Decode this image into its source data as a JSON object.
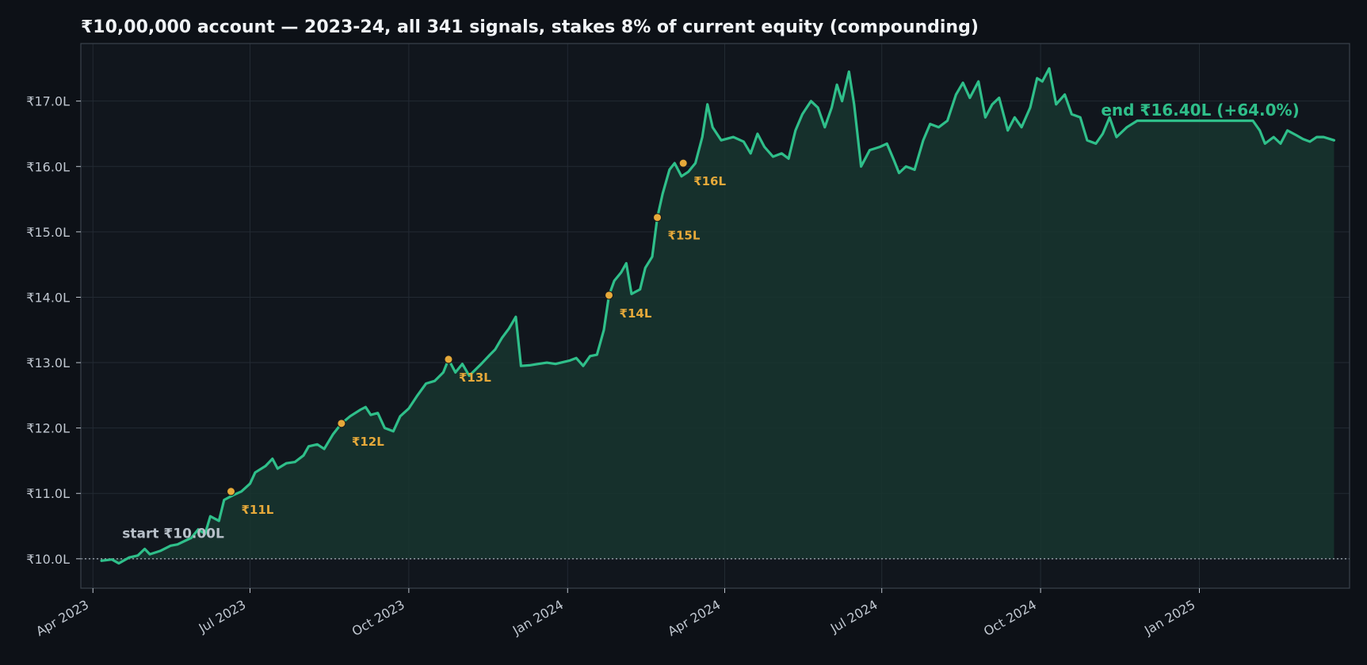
{
  "chart_data": {
    "type": "area",
    "title": "₹10,00,000 account — 2023-24, all 341 signals, stakes 8% of current equity (compounding)",
    "xlabel": "",
    "ylabel": "",
    "xlim": [
      "2023-03-25",
      "2025-03-29"
    ],
    "ylim": [
      9.55,
      17.88
    ],
    "grid": true,
    "y_unit": "lakh rupees",
    "yticks": [
      10,
      11,
      12,
      13,
      14,
      15,
      16,
      17
    ],
    "ytick_labels": [
      "₹10.0L",
      "₹11.0L",
      "₹12.0L",
      "₹13.0L",
      "₹14.0L",
      "₹15.0L",
      "₹16.0L",
      "₹17.0L"
    ],
    "xticks": [
      "2023-04-01",
      "2023-07-01",
      "2023-10-01",
      "2024-01-01",
      "2024-04-01",
      "2024-07-01",
      "2024-10-01",
      "2025-01-01"
    ],
    "xtick_labels": [
      "Apr 2023",
      "Jul 2023",
      "Oct 2023",
      "Jan 2024",
      "Apr 2024",
      "Jul 2024",
      "Oct 2024",
      "Jan 2025"
    ],
    "baseline": 10.0,
    "colors": {
      "line": "#2fbf8a",
      "fill": "#17352f",
      "milestone": "#e6a93a",
      "baseline": "#9aa3ad"
    },
    "series": [
      {
        "points": [
          [
            "2023-04-06",
            9.97
          ],
          [
            "2023-04-12",
            9.99
          ],
          [
            "2023-04-16",
            9.93
          ],
          [
            "2023-04-22",
            10.02
          ],
          [
            "2023-04-27",
            10.05
          ],
          [
            "2023-05-01",
            10.15
          ],
          [
            "2023-05-04",
            10.07
          ],
          [
            "2023-05-10",
            10.12
          ],
          [
            "2023-05-16",
            10.2
          ],
          [
            "2023-05-20",
            10.22
          ],
          [
            "2023-05-24",
            10.27
          ],
          [
            "2023-05-28",
            10.32
          ],
          [
            "2023-06-01",
            10.45
          ],
          [
            "2023-06-05",
            10.38
          ],
          [
            "2023-06-08",
            10.65
          ],
          [
            "2023-06-13",
            10.58
          ],
          [
            "2023-06-16",
            10.9
          ],
          [
            "2023-06-21",
            10.97
          ],
          [
            "2023-06-26",
            11.03
          ],
          [
            "2023-07-01",
            11.15
          ],
          [
            "2023-07-04",
            11.32
          ],
          [
            "2023-07-10",
            11.42
          ],
          [
            "2023-07-14",
            11.53
          ],
          [
            "2023-07-17",
            11.38
          ],
          [
            "2023-07-22",
            11.46
          ],
          [
            "2023-07-27",
            11.48
          ],
          [
            "2023-08-01",
            11.58
          ],
          [
            "2023-08-04",
            11.72
          ],
          [
            "2023-08-09",
            11.75
          ],
          [
            "2023-08-13",
            11.68
          ],
          [
            "2023-08-18",
            11.9
          ],
          [
            "2023-08-23",
            12.07
          ],
          [
            "2023-08-28",
            12.18
          ],
          [
            "2023-09-03",
            12.28
          ],
          [
            "2023-09-06",
            12.32
          ],
          [
            "2023-09-09",
            12.2
          ],
          [
            "2023-09-13",
            12.23
          ],
          [
            "2023-09-17",
            12.0
          ],
          [
            "2023-09-22",
            11.95
          ],
          [
            "2023-09-26",
            12.18
          ],
          [
            "2023-10-01",
            12.3
          ],
          [
            "2023-10-06",
            12.5
          ],
          [
            "2023-10-11",
            12.68
          ],
          [
            "2023-10-16",
            12.72
          ],
          [
            "2023-10-21",
            12.85
          ],
          [
            "2023-10-24",
            13.05
          ],
          [
            "2023-10-28",
            12.85
          ],
          [
            "2023-11-01",
            12.98
          ],
          [
            "2023-11-05",
            12.8
          ],
          [
            "2023-11-12",
            12.98
          ],
          [
            "2023-11-17",
            13.12
          ],
          [
            "2023-11-20",
            13.2
          ],
          [
            "2023-11-24",
            13.38
          ],
          [
            "2023-11-28",
            13.52
          ],
          [
            "2023-12-02",
            13.7
          ],
          [
            "2023-12-05",
            12.95
          ],
          [
            "2023-12-10",
            12.96
          ],
          [
            "2023-12-15",
            12.98
          ],
          [
            "2023-12-20",
            13.0
          ],
          [
            "2023-12-25",
            12.98
          ],
          [
            "2024-01-02",
            13.03
          ],
          [
            "2024-01-06",
            13.07
          ],
          [
            "2024-01-10",
            12.95
          ],
          [
            "2024-01-14",
            13.1
          ],
          [
            "2024-01-18",
            13.12
          ],
          [
            "2024-01-22",
            13.5
          ],
          [
            "2024-01-25",
            14.03
          ],
          [
            "2024-01-28",
            14.25
          ],
          [
            "2024-02-01",
            14.38
          ],
          [
            "2024-02-04",
            14.52
          ],
          [
            "2024-02-07",
            14.05
          ],
          [
            "2024-02-12",
            14.12
          ],
          [
            "2024-02-15",
            14.45
          ],
          [
            "2024-02-19",
            14.62
          ],
          [
            "2024-02-22",
            15.22
          ],
          [
            "2024-02-25",
            15.58
          ],
          [
            "2024-02-29",
            15.95
          ],
          [
            "2024-03-03",
            16.05
          ],
          [
            "2024-03-07",
            15.85
          ],
          [
            "2024-03-11",
            15.92
          ],
          [
            "2024-03-15",
            16.05
          ],
          [
            "2024-03-19",
            16.45
          ],
          [
            "2024-03-22",
            16.95
          ],
          [
            "2024-03-25",
            16.6
          ],
          [
            "2024-03-30",
            16.4
          ],
          [
            "2024-04-06",
            16.45
          ],
          [
            "2024-04-12",
            16.38
          ],
          [
            "2024-04-16",
            16.2
          ],
          [
            "2024-04-20",
            16.5
          ],
          [
            "2024-04-24",
            16.3
          ],
          [
            "2024-04-29",
            16.15
          ],
          [
            "2024-05-04",
            16.2
          ],
          [
            "2024-05-08",
            16.12
          ],
          [
            "2024-05-12",
            16.55
          ],
          [
            "2024-05-16",
            16.8
          ],
          [
            "2024-05-21",
            17.0
          ],
          [
            "2024-05-25",
            16.9
          ],
          [
            "2024-05-29",
            16.6
          ],
          [
            "2024-06-02",
            16.9
          ],
          [
            "2024-06-05",
            17.25
          ],
          [
            "2024-06-08",
            17.0
          ],
          [
            "2024-06-12",
            17.45
          ],
          [
            "2024-06-15",
            16.95
          ],
          [
            "2024-06-19",
            16.0
          ],
          [
            "2024-06-24",
            16.25
          ],
          [
            "2024-06-30",
            16.3
          ],
          [
            "2024-07-04",
            16.35
          ],
          [
            "2024-07-08",
            16.1
          ],
          [
            "2024-07-11",
            15.9
          ],
          [
            "2024-07-15",
            16.0
          ],
          [
            "2024-07-20",
            15.95
          ],
          [
            "2024-07-25",
            16.4
          ],
          [
            "2024-07-29",
            16.65
          ],
          [
            "2024-08-03",
            16.6
          ],
          [
            "2024-08-08",
            16.7
          ],
          [
            "2024-08-13",
            17.1
          ],
          [
            "2024-08-17",
            17.28
          ],
          [
            "2024-08-21",
            17.05
          ],
          [
            "2024-08-26",
            17.3
          ],
          [
            "2024-08-30",
            16.75
          ],
          [
            "2024-09-03",
            16.95
          ],
          [
            "2024-09-07",
            17.05
          ],
          [
            "2024-09-12",
            16.55
          ],
          [
            "2024-09-16",
            16.75
          ],
          [
            "2024-09-20",
            16.6
          ],
          [
            "2024-09-25",
            16.9
          ],
          [
            "2024-09-29",
            17.35
          ],
          [
            "2024-10-02",
            17.3
          ],
          [
            "2024-10-06",
            17.5
          ],
          [
            "2024-10-10",
            16.95
          ],
          [
            "2024-10-15",
            17.1
          ],
          [
            "2024-10-19",
            16.8
          ],
          [
            "2024-10-24",
            16.75
          ],
          [
            "2024-10-28",
            16.4
          ],
          [
            "2024-11-02",
            16.35
          ],
          [
            "2024-11-06",
            16.5
          ],
          [
            "2024-11-10",
            16.75
          ],
          [
            "2024-11-14",
            16.45
          ],
          [
            "2024-11-20",
            16.6
          ],
          [
            "2024-11-26",
            16.7
          ],
          [
            "2024-12-01",
            16.7
          ],
          [
            "2024-12-20",
            16.7
          ],
          [
            "2025-01-05",
            16.7
          ],
          [
            "2025-01-20",
            16.7
          ],
          [
            "2025-02-01",
            16.7
          ],
          [
            "2025-02-05",
            16.55
          ],
          [
            "2025-02-08",
            16.35
          ],
          [
            "2025-02-13",
            16.45
          ],
          [
            "2025-02-17",
            16.35
          ],
          [
            "2025-02-21",
            16.55
          ],
          [
            "2025-02-26",
            16.48
          ],
          [
            "2025-03-02",
            16.42
          ],
          [
            "2025-03-06",
            16.38
          ],
          [
            "2025-03-10",
            16.45
          ],
          [
            "2025-03-14",
            16.45
          ],
          [
            "2025-03-20",
            16.4
          ]
        ]
      }
    ],
    "milestones": [
      {
        "date": "2023-06-20",
        "value": 11.03,
        "label": "₹11L"
      },
      {
        "date": "2023-08-23",
        "value": 12.07,
        "label": "₹12L"
      },
      {
        "date": "2023-10-24",
        "value": 13.05,
        "label": "₹13L"
      },
      {
        "date": "2024-01-25",
        "value": 14.03,
        "label": "₹14L"
      },
      {
        "date": "2024-02-22",
        "value": 15.22,
        "label": "₹15L"
      },
      {
        "date": "2024-03-08",
        "value": 16.05,
        "label": "₹16L"
      }
    ],
    "annotations": {
      "start": {
        "text": "start ₹10.00L",
        "date": "2023-04-18",
        "value": 10.32
      },
      "end": {
        "text": "end ₹16.40L  (+64.0%)",
        "date": "2024-11-05",
        "value": 16.78
      }
    }
  }
}
